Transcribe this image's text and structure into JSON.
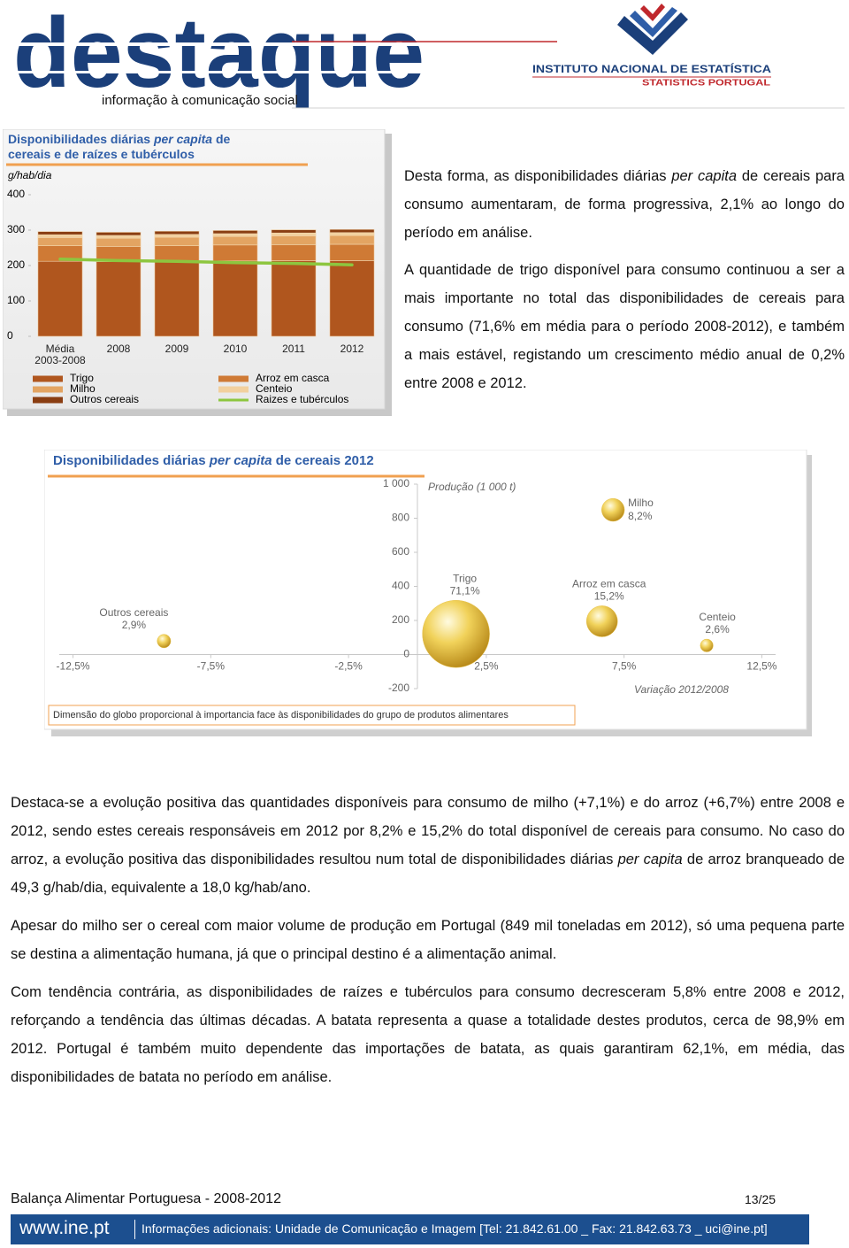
{
  "header": {
    "logo": "destaque",
    "tagline": "informação à comunicação social",
    "institute": "INSTITUTO NACIONAL DE ESTATÍSTICA",
    "institute_en": "STATISTICS PORTUGAL"
  },
  "chart_data": [
    {
      "type": "bar",
      "stacked": true,
      "title": [
        "Disponibilidades diárias ",
        {
          "text": "per capita",
          "italic": true
        },
        " de cereais e de raízes e tubérculos"
      ],
      "y_label": "g/hab/dia",
      "categories": [
        "Média 2003-2008",
        "2008",
        "2009",
        "2010",
        "2011",
        "2012"
      ],
      "ylim": [
        0,
        400
      ],
      "yticks": [
        0,
        100,
        200,
        300,
        400
      ],
      "series": [
        {
          "name": "Trigo",
          "color": "#b0561e",
          "values": [
            212,
            211,
            212,
            213,
            214,
            214
          ]
        },
        {
          "name": "Arroz em casca",
          "color": "#cf7a35",
          "values": [
            44,
            43,
            44,
            45,
            45,
            46
          ]
        },
        {
          "name": "Milho",
          "color": "#e3a462",
          "values": [
            23,
            23,
            24,
            24,
            25,
            25
          ]
        },
        {
          "name": "Centeio",
          "color": "#f2d09e",
          "values": [
            8,
            8,
            8,
            8,
            8,
            8
          ]
        },
        {
          "name": "Outros cereais",
          "color": "#8a3e12",
          "values": [
            9,
            9,
            9,
            9,
            9,
            9
          ]
        },
        {
          "name": "Raizes e tubérculos",
          "color": "#8dc63f",
          "type": "line",
          "values": [
            218,
            214,
            212,
            208,
            206,
            202
          ]
        }
      ]
    },
    {
      "type": "bubble",
      "title": [
        "Disponibilidades diárias ",
        {
          "text": "per capita",
          "italic": true
        },
        " de cereais 2012"
      ],
      "y_label": "Produção (1 000 t)",
      "x_label": "Variação 2012/2008",
      "note": "Dimensão do globo proporcional à importancia face às disponibilidades do grupo de produtos alimentares",
      "labels": [
        "Outros cereais",
        "Trigo",
        "Arroz em casca",
        "Milho",
        "Centeio"
      ],
      "x": [
        -9.2,
        1.4,
        6.7,
        7.1,
        10.5
      ],
      "y": [
        79,
        121,
        195,
        849,
        53
      ],
      "sizes": [
        2.9,
        71.1,
        15.2,
        8.2,
        2.6
      ],
      "size_labels": [
        "2,9%",
        "71,1%",
        "15,2%",
        "8,2%",
        "2,6%"
      ],
      "color": "#e8c24a",
      "xlim": [
        -13,
        13
      ],
      "xticks": [
        {
          "value": -12.5,
          "label": "-12,5%"
        },
        {
          "value": -7.5,
          "label": "-7,5%"
        },
        {
          "value": -2.5,
          "label": "-2,5%"
        },
        {
          "value": 2.5,
          "label": "2,5%"
        },
        {
          "value": 7.5,
          "label": "7,5%"
        },
        {
          "value": 12.5,
          "label": "12,5%"
        }
      ],
      "ylim": [
        -200,
        1000
      ],
      "yticks": [
        -200,
        0,
        200,
        400,
        600,
        800,
        {
          "value": 1000,
          "label": "1 000"
        }
      ]
    }
  ],
  "side_paragraphs": [
    [
      "Desta forma, as disponibilidades diárias ",
      {
        "text": "per capita",
        "italic": true
      },
      " de cereais para consumo aumentaram, de forma progressiva, 2,1% ao longo do período em análise."
    ],
    [
      "A quantidade de trigo disponível para consumo continuou a ser a mais importante no total das disponibilidades de cereais para consumo (71,6% em média para o período 2008-2012), e também a mais estável, registando um crescimento médio anual de 0,2% entre 2008 e 2012."
    ]
  ],
  "paragraphs": [
    [
      "Destaca-se a evolução positiva das quantidades disponíveis para consumo de milho (+7,1%) e do arroz (+6,7%) entre 2008 e 2012, sendo estes cereais responsáveis em 2012 por 8,2% e 15,2% do total disponível de cereais para consumo. No caso do arroz, a evolução positiva das disponibilidades resultou num total de disponibilidades diárias ",
      {
        "text": "per capita",
        "italic": true
      },
      " de arroz branqueado de 49,3 g/hab/dia, equivalente a 18,0 kg/hab/ano."
    ],
    [
      "Apesar do milho ser o cereal com maior volume de produção em Portugal (849 mil toneladas em 2012), só uma pequena parte se destina a alimentação humana, já que o principal destino é a alimentação animal."
    ],
    [
      "Com tendência contrária, as disponibilidades de raízes e tubérculos para consumo decresceram 5,8% entre 2008 e 2012, reforçando a tendência das últimas décadas. A batata representa a quase a totalidade destes produtos, cerca de 98,9% em 2012. Portugal é também muito dependente das importações de batata, as quais garantiram 62,1%, em média, das disponibilidades de batata no período em análise."
    ]
  ],
  "footer": {
    "publication": "Balança Alimentar Portuguesa - 2008-2012",
    "page": "13/25",
    "site": "www.ine.pt",
    "contact": "Informações adicionais: Unidade de Comunicação e Imagem [Tel: 21.842.61.00 _ Fax: 21.842.63.73 _ uci@ine.pt]"
  }
}
